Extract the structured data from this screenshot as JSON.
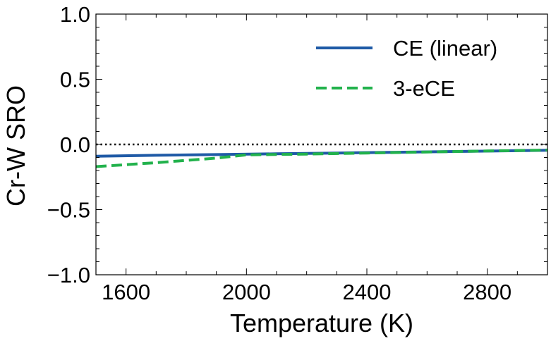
{
  "chart_data": {
    "type": "line",
    "title": "",
    "xlabel": "Temperature (K)",
    "ylabel": "Cr-W SRO",
    "xlim": [
      1500,
      3000
    ],
    "ylim": [
      -1.0,
      1.0
    ],
    "x_ticks": [
      1600,
      2000,
      2400,
      2800
    ],
    "x_tick_labels": [
      "1600",
      "2000",
      "2400",
      "2800"
    ],
    "y_ticks": [
      -1.0,
      -0.5,
      0.0,
      0.5,
      1.0
    ],
    "y_tick_labels": [
      "−1.0",
      "−0.5",
      "0.0",
      "0.5",
      "1.0"
    ],
    "reference_line": {
      "y": 0.0,
      "style": "dotted",
      "color": "#000000"
    },
    "legend_position": "top-right",
    "series": [
      {
        "name": "CE (linear)",
        "style": "solid",
        "color": "#1f5aa6",
        "x": [
          1500,
          1700,
          1900,
          2100,
          2300,
          2500,
          2700,
          2900,
          3000
        ],
        "values": [
          -0.09,
          -0.083,
          -0.078,
          -0.072,
          -0.066,
          -0.06,
          -0.054,
          -0.048,
          -0.045
        ]
      },
      {
        "name": "3-eCE",
        "style": "dashed",
        "color": "#22b24c",
        "x": [
          1500,
          1700,
          1900,
          2000,
          2200,
          2400,
          2600,
          2800,
          3000
        ],
        "values": [
          -0.17,
          -0.14,
          -0.105,
          -0.08,
          -0.074,
          -0.066,
          -0.058,
          -0.05,
          -0.043
        ]
      }
    ]
  }
}
